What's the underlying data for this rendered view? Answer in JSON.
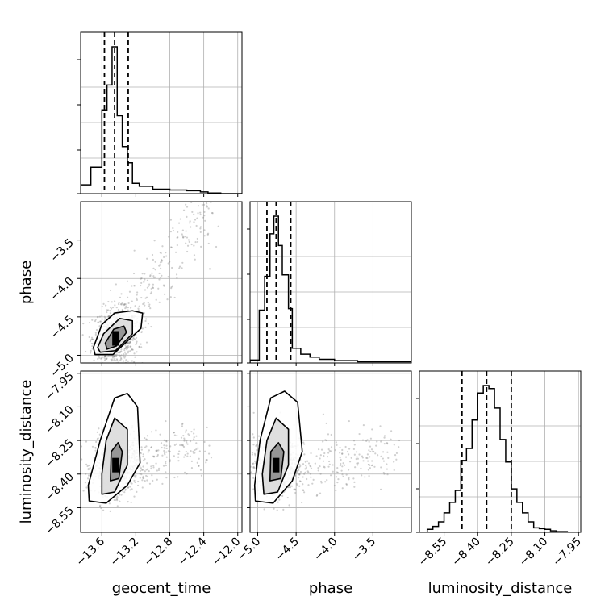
{
  "chart_data": {
    "type": "corner",
    "parameters": [
      "geocent_time",
      "phase",
      "luminosity_distance"
    ],
    "axis_labels": {
      "geocent_time": "geocent_time",
      "phase": "phase",
      "luminosity_distance": "luminosity_distance"
    },
    "ranges": {
      "geocent_time": [
        -13.85,
        -11.95
      ],
      "phase": [
        -5.1,
        -3.0
      ],
      "luminosity_distance": [
        -8.66,
        -7.94
      ]
    },
    "ticks": {
      "geocent_time": [
        -13.6,
        -13.2,
        -12.8,
        -12.4,
        -12.0
      ],
      "phase": [
        -5.0,
        -4.5,
        -4.0,
        -3.5
      ],
      "luminosity_distance": [
        -8.55,
        -8.4,
        -8.25,
        -8.1,
        -7.95
      ]
    },
    "tick_labels": {
      "geocent_time": [
        "−13.6",
        "−13.2",
        "−12.8",
        "−12.4",
        "−12.0"
      ],
      "phase": [
        "−5.0",
        "−4.5",
        "−4.0",
        "−3.5"
      ],
      "luminosity_distance": [
        "−8.55",
        "−8.40",
        "−8.25",
        "−8.10",
        "−7.95"
      ]
    },
    "quantiles": {
      "geocent_time": [
        -13.57,
        -13.45,
        -13.29
      ],
      "phase": [
        -4.88,
        -4.76,
        -4.57
      ],
      "luminosity_distance": [
        -8.47,
        -8.36,
        -8.25
      ]
    },
    "histograms": {
      "geocent_time": {
        "edges": [
          -13.85,
          -13.73,
          -13.6,
          -13.54,
          -13.48,
          -13.42,
          -13.36,
          -13.3,
          -13.24,
          -13.16,
          -13.0,
          -12.8,
          -12.6,
          -12.44,
          -12.35,
          -12.2,
          -11.95
        ],
        "counts": [
          0.06,
          0.18,
          0.57,
          0.74,
          1.0,
          0.53,
          0.32,
          0.21,
          0.07,
          0.05,
          0.03,
          0.025,
          0.02,
          0.012,
          0.004,
          0.0
        ]
      },
      "phase": {
        "edges": [
          -5.1,
          -4.98,
          -4.91,
          -4.84,
          -4.79,
          -4.73,
          -4.68,
          -4.6,
          -4.55,
          -4.44,
          -4.32,
          -4.2,
          -4.0,
          -3.7,
          -3.0
        ],
        "counts": [
          0.02,
          0.36,
          0.59,
          0.88,
          1.0,
          0.8,
          0.6,
          0.37,
          0.1,
          0.06,
          0.04,
          0.025,
          0.016,
          0.008
        ]
      },
      "luminosity_distance": {
        "edges": [
          -8.66,
          -8.625,
          -8.6,
          -8.575,
          -8.55,
          -8.525,
          -8.5,
          -8.475,
          -8.45,
          -8.425,
          -8.4,
          -8.375,
          -8.35,
          -8.325,
          -8.3,
          -8.275,
          -8.25,
          -8.225,
          -8.2,
          -8.175,
          -8.15,
          -8.125,
          -8.1,
          -8.075,
          -8.05,
          -8.0,
          -7.94
        ],
        "counts": [
          0.0,
          0.02,
          0.04,
          0.07,
          0.13,
          0.2,
          0.28,
          0.48,
          0.56,
          0.75,
          0.93,
          0.98,
          0.96,
          0.83,
          0.62,
          0.47,
          0.29,
          0.2,
          0.13,
          0.07,
          0.03,
          0.025,
          0.02,
          0.01,
          0.005,
          0.0
        ]
      }
    },
    "pairs": [
      {
        "x": "geocent_time",
        "y": "phase",
        "center": [
          -13.44,
          -4.78
        ],
        "contours": [
          [
            [
              -13.54,
              -4.92
            ],
            [
              -13.43,
              -4.88
            ],
            [
              -13.31,
              -4.7
            ],
            [
              -13.34,
              -4.62
            ],
            [
              -13.46,
              -4.66
            ],
            [
              -13.56,
              -4.84
            ]
          ],
          [
            [
              -13.62,
              -4.96
            ],
            [
              -13.44,
              -4.94
            ],
            [
              -13.24,
              -4.72
            ],
            [
              -13.24,
              -4.55
            ],
            [
              -13.39,
              -4.52
            ],
            [
              -13.58,
              -4.72
            ],
            [
              -13.65,
              -4.9
            ]
          ],
          [
            [
              -13.68,
              -4.99
            ],
            [
              -13.47,
              -4.99
            ],
            [
              -13.14,
              -4.65
            ],
            [
              -13.12,
              -4.45
            ],
            [
              -13.24,
              -4.42
            ],
            [
              -13.45,
              -4.45
            ],
            [
              -13.6,
              -4.6
            ],
            [
              -13.7,
              -4.9
            ]
          ]
        ],
        "trend": {
          "x0": -13.6,
          "y0": -4.95,
          "x1": -12.35,
          "y1": -3.05,
          "spread": 0.14
        }
      },
      {
        "x": "geocent_time",
        "y": "luminosity_distance",
        "center": [
          -13.44,
          -8.36
        ],
        "contours": [
          [
            [
              -13.5,
              -8.43
            ],
            [
              -13.4,
              -8.42
            ],
            [
              -13.36,
              -8.3
            ],
            [
              -13.41,
              -8.26
            ],
            [
              -13.49,
              -8.3
            ]
          ],
          [
            [
              -13.6,
              -8.49
            ],
            [
              -13.45,
              -8.48
            ],
            [
              -13.3,
              -8.36
            ],
            [
              -13.3,
              -8.2
            ],
            [
              -13.45,
              -8.15
            ],
            [
              -13.55,
              -8.25
            ],
            [
              -13.6,
              -8.4
            ]
          ],
          [
            [
              -13.75,
              -8.52
            ],
            [
              -13.55,
              -8.53
            ],
            [
              -13.3,
              -8.45
            ],
            [
              -13.15,
              -8.35
            ],
            [
              -13.18,
              -8.1
            ],
            [
              -13.3,
              -8.04
            ],
            [
              -13.45,
              -8.06
            ],
            [
              -13.62,
              -8.25
            ],
            [
              -13.76,
              -8.45
            ]
          ]
        ],
        "trend": {
          "x0": -13.6,
          "y0": -8.4,
          "x1": -12.4,
          "y1": -8.25,
          "spread": 0.11
        }
      },
      {
        "x": "phase",
        "y": "luminosity_distance",
        "center": [
          -4.76,
          -8.36
        ],
        "contours": [
          [
            [
              -4.84,
              -8.43
            ],
            [
              -4.7,
              -8.42
            ],
            [
              -4.66,
              -8.3
            ],
            [
              -4.73,
              -8.26
            ],
            [
              -4.83,
              -8.3
            ]
          ],
          [
            [
              -4.92,
              -8.49
            ],
            [
              -4.74,
              -8.48
            ],
            [
              -4.6,
              -8.36
            ],
            [
              -4.6,
              -8.2
            ],
            [
              -4.76,
              -8.15
            ],
            [
              -4.88,
              -8.25
            ],
            [
              -4.94,
              -8.4
            ]
          ],
          [
            [
              -5.03,
              -8.52
            ],
            [
              -4.8,
              -8.53
            ],
            [
              -4.55,
              -8.43
            ],
            [
              -4.42,
              -8.3
            ],
            [
              -4.48,
              -8.08
            ],
            [
              -4.65,
              -8.03
            ],
            [
              -4.83,
              -8.06
            ],
            [
              -4.97,
              -8.25
            ],
            [
              -5.04,
              -8.45
            ]
          ]
        ],
        "trend": {
          "x0": -4.9,
          "y0": -8.38,
          "x1": -3.2,
          "y1": -8.3,
          "spread": 0.11
        }
      }
    ]
  }
}
